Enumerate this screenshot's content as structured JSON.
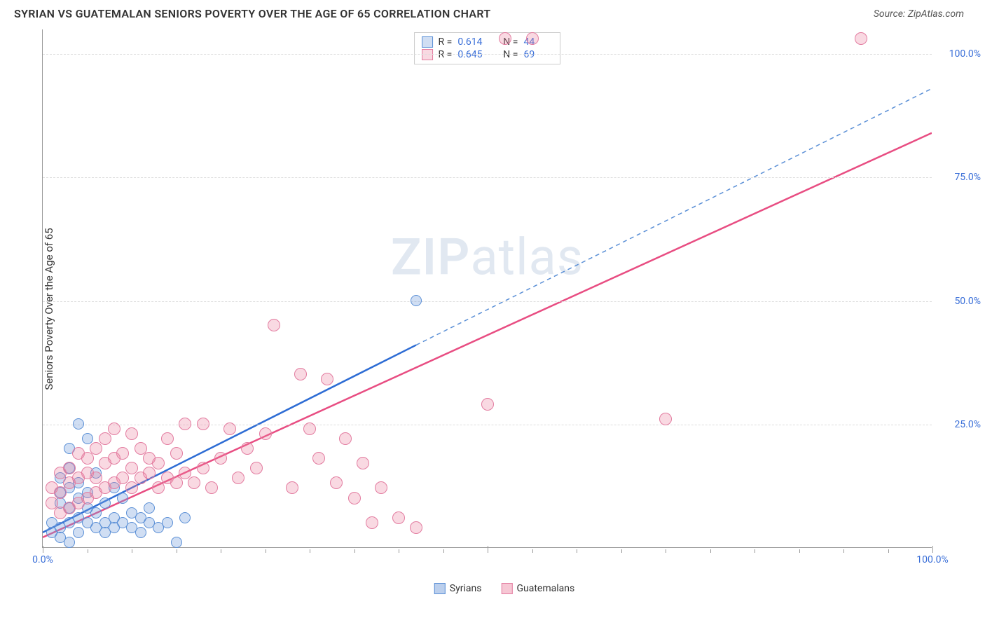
{
  "header": {
    "title": "SYRIAN VS GUATEMALAN SENIORS POVERTY OVER THE AGE OF 65 CORRELATION CHART",
    "source_prefix": "Source: ",
    "source_name": "ZipAtlas.com"
  },
  "chart": {
    "type": "scatter",
    "ylabel": "Seniors Poverty Over the Age of 65",
    "xlim": [
      0,
      100
    ],
    "ylim": [
      0,
      105
    ],
    "y_ticks": [
      25,
      50,
      75,
      100
    ],
    "y_tick_labels": [
      "25.0%",
      "50.0%",
      "75.0%",
      "100.0%"
    ],
    "x_tick_major_positions": [
      0,
      50,
      100
    ],
    "x_tick_labels_pos": [
      0,
      100
    ],
    "x_tick_labels": [
      "0.0%",
      "100.0%"
    ],
    "x_tick_minor_step": 5,
    "grid_color": "#dddddd",
    "axis_color": "#999999",
    "tick_label_color": "#3a6fd8",
    "background_color": "#ffffff",
    "watermark": {
      "zip": "ZIP",
      "atlas": "atlas"
    },
    "series": [
      {
        "name": "Syrians",
        "marker_fill": "rgba(120,160,220,0.35)",
        "marker_stroke": "#5a8fd6",
        "marker_radius": 8,
        "trend_color": "#2d6cd4",
        "trend_width": 2.5,
        "trend_dash_color": "#5a8fd6",
        "R": "0.614",
        "N": "44",
        "trend_solid": {
          "x1": 0,
          "y1": 3,
          "x2": 42,
          "y2": 41
        },
        "trend_dash": {
          "x1": 42,
          "y1": 41,
          "x2": 100,
          "y2": 93
        },
        "points": [
          [
            1,
            3
          ],
          [
            1,
            5
          ],
          [
            2,
            2
          ],
          [
            2,
            4
          ],
          [
            2,
            9
          ],
          [
            2,
            11
          ],
          [
            2,
            14
          ],
          [
            3,
            1
          ],
          [
            3,
            5
          ],
          [
            3,
            8
          ],
          [
            3,
            12
          ],
          [
            3,
            16
          ],
          [
            3,
            20
          ],
          [
            4,
            3
          ],
          [
            4,
            6
          ],
          [
            4,
            10
          ],
          [
            4,
            13
          ],
          [
            4,
            25
          ],
          [
            5,
            5
          ],
          [
            5,
            8
          ],
          [
            5,
            11
          ],
          [
            5,
            22
          ],
          [
            6,
            4
          ],
          [
            6,
            7
          ],
          [
            6,
            15
          ],
          [
            7,
            3
          ],
          [
            7,
            5
          ],
          [
            7,
            9
          ],
          [
            8,
            4
          ],
          [
            8,
            6
          ],
          [
            8,
            12
          ],
          [
            9,
            5
          ],
          [
            9,
            10
          ],
          [
            10,
            4
          ],
          [
            10,
            7
          ],
          [
            11,
            3
          ],
          [
            11,
            6
          ],
          [
            12,
            5
          ],
          [
            12,
            8
          ],
          [
            13,
            4
          ],
          [
            14,
            5
          ],
          [
            15,
            1
          ],
          [
            16,
            6
          ],
          [
            42,
            50
          ]
        ]
      },
      {
        "name": "Guatemalans",
        "marker_fill": "rgba(235,130,160,0.3)",
        "marker_stroke": "#e37ca0",
        "marker_radius": 9,
        "trend_color": "#e84d82",
        "trend_width": 2.5,
        "trend_dash_color": "#e37ca0",
        "R": "0.645",
        "N": "69",
        "trend_solid": {
          "x1": 0,
          "y1": 2,
          "x2": 100,
          "y2": 84
        },
        "trend_dash": null,
        "points": [
          [
            1,
            9
          ],
          [
            1,
            12
          ],
          [
            2,
            7
          ],
          [
            2,
            11
          ],
          [
            2,
            15
          ],
          [
            3,
            8
          ],
          [
            3,
            13
          ],
          [
            3,
            16
          ],
          [
            4,
            9
          ],
          [
            4,
            14
          ],
          [
            4,
            19
          ],
          [
            5,
            10
          ],
          [
            5,
            15
          ],
          [
            5,
            18
          ],
          [
            6,
            11
          ],
          [
            6,
            14
          ],
          [
            6,
            20
          ],
          [
            7,
            12
          ],
          [
            7,
            17
          ],
          [
            7,
            22
          ],
          [
            8,
            13
          ],
          [
            8,
            18
          ],
          [
            8,
            24
          ],
          [
            9,
            14
          ],
          [
            9,
            19
          ],
          [
            10,
            12
          ],
          [
            10,
            16
          ],
          [
            10,
            23
          ],
          [
            11,
            14
          ],
          [
            11,
            20
          ],
          [
            12,
            15
          ],
          [
            12,
            18
          ],
          [
            13,
            12
          ],
          [
            13,
            17
          ],
          [
            14,
            14
          ],
          [
            14,
            22
          ],
          [
            15,
            13
          ],
          [
            15,
            19
          ],
          [
            16,
            15
          ],
          [
            16,
            25
          ],
          [
            17,
            13
          ],
          [
            18,
            16
          ],
          [
            18,
            25
          ],
          [
            19,
            12
          ],
          [
            20,
            18
          ],
          [
            21,
            24
          ],
          [
            22,
            14
          ],
          [
            23,
            20
          ],
          [
            24,
            16
          ],
          [
            25,
            23
          ],
          [
            26,
            45
          ],
          [
            28,
            12
          ],
          [
            29,
            35
          ],
          [
            30,
            24
          ],
          [
            31,
            18
          ],
          [
            32,
            34
          ],
          [
            33,
            13
          ],
          [
            34,
            22
          ],
          [
            35,
            10
          ],
          [
            36,
            17
          ],
          [
            37,
            5
          ],
          [
            38,
            12
          ],
          [
            40,
            6
          ],
          [
            42,
            4
          ],
          [
            50,
            29
          ],
          [
            52,
            103
          ],
          [
            55,
            103
          ],
          [
            70,
            26
          ],
          [
            92,
            103
          ]
        ]
      }
    ],
    "legend_bottom": [
      {
        "label": "Syrians",
        "fill": "rgba(120,160,220,0.5)",
        "stroke": "#5a8fd6"
      },
      {
        "label": "Guatemalans",
        "fill": "rgba(235,130,160,0.45)",
        "stroke": "#e37ca0"
      }
    ],
    "legend_top_labels": {
      "R": "R =",
      "N": "N ="
    }
  }
}
